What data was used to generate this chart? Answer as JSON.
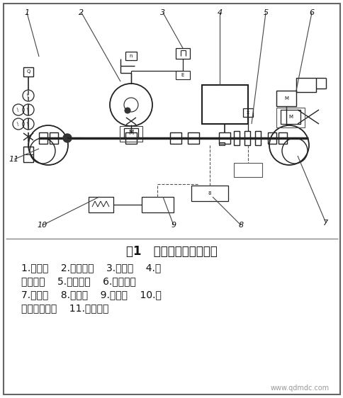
{
  "title": "图1   气马达性能实验装置",
  "caption_lines": [
    "1.流量计    2.调速马达    3.转速表    4.扭",
    "矩检测器    5.速变装置    6.蜗轮蜗杆",
    "7.负荷泵    8.转速表    9.应变计    10.记",
    "录器或指示计    11.测试马达"
  ],
  "watermark": "www.qdmdc.com",
  "bg_color": "#ffffff",
  "border_color": "#888888",
  "text_color": "#111111",
  "title_fontsize": 12,
  "caption_fontsize": 10,
  "watermark_fontsize": 7.5
}
